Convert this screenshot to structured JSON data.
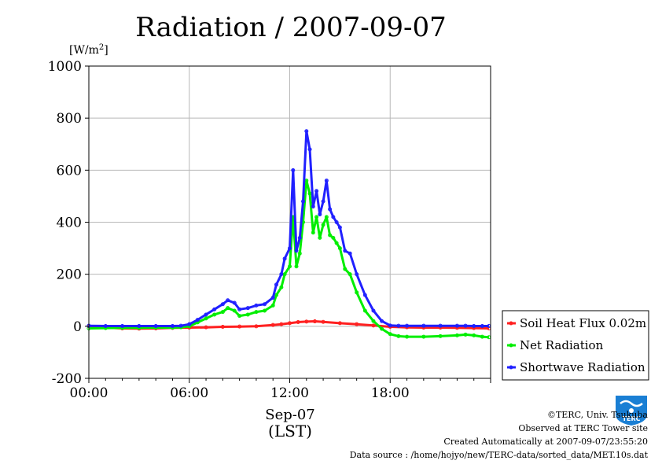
{
  "chart_data": {
    "type": "line",
    "title": "Radiation / 2007-09-07",
    "ylabel_unit": "[W/m",
    "ylabel_sup": "2",
    "ylabel_close": "]",
    "ylim": [
      -200,
      1000
    ],
    "xlim": [
      0,
      24
    ],
    "yticks": [
      -200,
      0,
      200,
      400,
      600,
      800,
      1000
    ],
    "ytick_labels": [
      "-200",
      "0",
      "200",
      "400",
      "600",
      "800",
      "1000"
    ],
    "xticks": [
      0,
      6,
      12,
      18
    ],
    "xtick_labels": [
      "00:00",
      "06:00",
      "12:00",
      "18:00"
    ],
    "x_date_label": "Sep-07",
    "x_unit_label": "(LST)",
    "grid": true,
    "legend_position": "right",
    "series": [
      {
        "name": "Soil Heat Flux 0.02m",
        "color": "#ff2020",
        "x": [
          0,
          1,
          2,
          3,
          4,
          5,
          6,
          7,
          8,
          9,
          10,
          11,
          11.5,
          12,
          12.5,
          13,
          13.5,
          14,
          15,
          16,
          17,
          18,
          19,
          20,
          21,
          22,
          23,
          23.9
        ],
        "y": [
          0,
          -5,
          -8,
          -9,
          -8,
          -6,
          -5,
          -4,
          -2,
          -1,
          0,
          5,
          8,
          12,
          16,
          18,
          19,
          17,
          12,
          8,
          3,
          -2,
          -4,
          -5,
          -5,
          -6,
          -7,
          -8
        ]
      },
      {
        "name": "Net Radiation",
        "color": "#00ee00",
        "x": [
          0,
          1,
          2,
          3,
          4,
          5,
          5.5,
          6,
          6.5,
          7,
          7.5,
          8,
          8.3,
          8.7,
          9,
          9.5,
          10,
          10.5,
          11,
          11.2,
          11.5,
          11.7,
          12,
          12.2,
          12.4,
          12.6,
          12.8,
          13,
          13.2,
          13.4,
          13.6,
          13.8,
          14,
          14.2,
          14.4,
          14.6,
          14.8,
          15,
          15.3,
          15.6,
          16,
          16.5,
          17,
          17.5,
          18,
          18.5,
          19,
          20,
          21,
          22,
          22.5,
          23,
          23.5,
          23.9
        ],
        "y": [
          -8,
          -7,
          -6,
          -6,
          -5,
          -5,
          -4,
          0,
          15,
          30,
          45,
          55,
          70,
          60,
          40,
          45,
          55,
          60,
          80,
          120,
          150,
          200,
          230,
          420,
          230,
          280,
          400,
          560,
          510,
          360,
          420,
          340,
          390,
          420,
          350,
          340,
          320,
          300,
          220,
          200,
          130,
          60,
          20,
          -10,
          -30,
          -38,
          -40,
          -40,
          -38,
          -35,
          -32,
          -35,
          -40,
          -42
        ]
      },
      {
        "name": "Shortwave Radiation",
        "color": "#2020ff",
        "x": [
          0,
          1,
          2,
          3,
          4,
          5,
          5.5,
          6,
          6.5,
          7,
          7.5,
          8,
          8.3,
          8.7,
          9,
          9.5,
          10,
          10.5,
          11,
          11.2,
          11.5,
          11.7,
          12,
          12.2,
          12.4,
          12.6,
          12.8,
          13,
          13.2,
          13.4,
          13.6,
          13.8,
          14,
          14.2,
          14.4,
          14.6,
          14.8,
          15,
          15.3,
          15.6,
          16,
          16.5,
          17,
          17.5,
          18,
          18.5,
          19,
          20,
          21,
          22,
          22.5,
          23,
          23.5,
          23.9
        ],
        "y": [
          2,
          1,
          1,
          1,
          1,
          1,
          2,
          8,
          25,
          45,
          65,
          85,
          100,
          90,
          65,
          70,
          80,
          85,
          110,
          160,
          200,
          260,
          300,
          600,
          290,
          340,
          480,
          750,
          680,
          460,
          520,
          430,
          480,
          560,
          450,
          420,
          400,
          380,
          290,
          280,
          200,
          120,
          60,
          20,
          3,
          2,
          2,
          2,
          2,
          2,
          2,
          1,
          1,
          1
        ]
      }
    ]
  },
  "footer": {
    "copyright": "©TERC, Univ. Tsukuba",
    "observed": "Observed at TERC Tower site",
    "created": "Created Automatically at 2007-09-07/23:55:20",
    "source": "Data source : /home/hojyo/new/TERC-data/sorted_data/MET.10s.dat",
    "logo_text": "TERC",
    "logo_color": "#1a7fd4"
  }
}
